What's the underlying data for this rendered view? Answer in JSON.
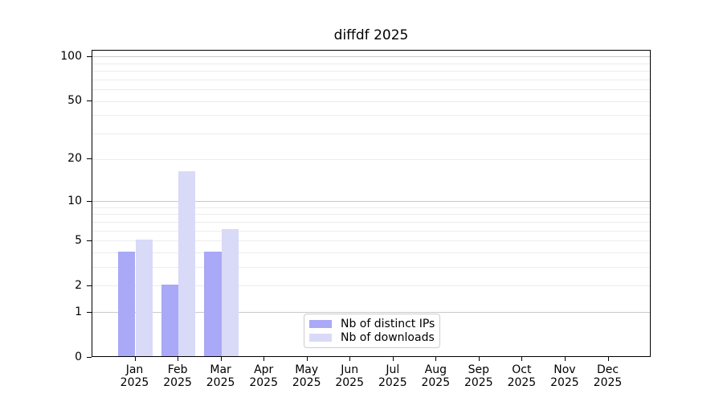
{
  "chart_data": {
    "type": "bar",
    "title": "diffdf 2025",
    "categories": [
      "Jan",
      "Feb",
      "Mar",
      "Apr",
      "May",
      "Jun",
      "Jul",
      "Aug",
      "Sep",
      "Oct",
      "Nov",
      "Dec"
    ],
    "year_label": "2025",
    "series": [
      {
        "name": "Nb of distinct IPs",
        "color": "#a9a9f7",
        "values": [
          4,
          2,
          4,
          0,
          0,
          0,
          0,
          0,
          0,
          0,
          0,
          0
        ]
      },
      {
        "name": "Nb of downloads",
        "color": "#d9d9f8",
        "values": [
          5,
          16,
          6,
          0,
          0,
          0,
          0,
          0,
          0,
          0,
          0,
          0
        ]
      }
    ],
    "xlabel": "",
    "ylabel": "",
    "y_axis": {
      "scale": "log1p",
      "ylim": [
        0,
        110
      ],
      "tick_values": [
        0,
        1,
        2,
        5,
        10,
        20,
        50,
        100
      ],
      "tick_labels": [
        "0",
        "1",
        "2",
        "5",
        "10",
        "20",
        "50",
        "100"
      ],
      "major_gridlines": [
        1,
        10,
        100
      ],
      "minor_gridlines": [
        2,
        3,
        4,
        5,
        6,
        7,
        8,
        9,
        20,
        30,
        40,
        50,
        60,
        70,
        80,
        90
      ]
    },
    "grid": true,
    "bar_width_fraction": 0.4,
    "legend": {
      "position": "lower center",
      "entries": [
        "Nb of distinct IPs",
        "Nb of downloads"
      ]
    }
  },
  "colors": {
    "background": "#ffffff",
    "spine": "#000000",
    "major_grid": "#c9c9c9",
    "minor_grid": "#ececec",
    "legend_border": "#cccccc",
    "text": "#000000"
  }
}
